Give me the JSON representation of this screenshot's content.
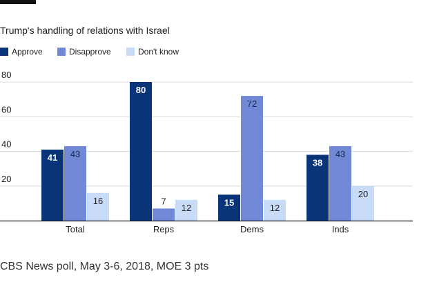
{
  "chart_data": {
    "type": "bar",
    "title": "Trump's handling of relations with Israel",
    "categories": [
      "Total",
      "Reps",
      "Dems",
      "Inds"
    ],
    "series": [
      {
        "name": "Approve",
        "color": "#0a3478",
        "values": [
          41,
          80,
          15,
          38
        ]
      },
      {
        "name": "Disapprove",
        "color": "#7088d6",
        "values": [
          43,
          7,
          72,
          43
        ]
      },
      {
        "name": "Don't know",
        "color": "#c8dcfa",
        "values": [
          16,
          12,
          12,
          20
        ]
      }
    ],
    "ylim": [
      0,
      80
    ],
    "yticks": [
      20,
      40,
      60,
      80
    ],
    "grid": true,
    "legend_position": "top-left",
    "data_labels": true
  },
  "footer": {
    "source": "CBS News poll, May 3-6, 2018, MOE 3 pts"
  }
}
